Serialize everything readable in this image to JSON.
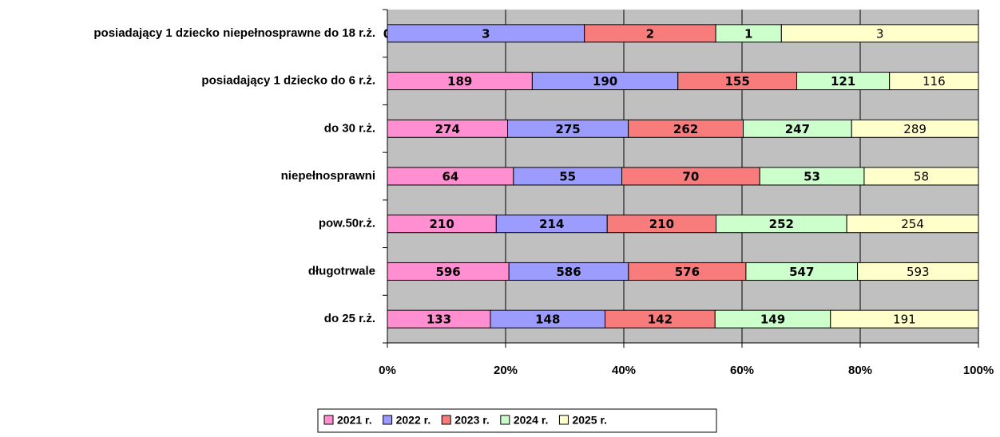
{
  "chart_data": {
    "type": "stacked100_hbar",
    "categories": [
      "posiadający 1 dziecko niepełnosprawne do 18 r.ż.",
      "posiadający 1 dziecko do 6 r.ż.",
      "do 30 r.ż.",
      "niepełnosprawni",
      "pow.50r.ż.",
      "długotrwale",
      "do 25 r.ż."
    ],
    "series": [
      {
        "name": "2021 r.",
        "color": "#ff8fd0",
        "values": [
          0,
          189,
          274,
          64,
          210,
          596,
          133
        ]
      },
      {
        "name": "2022 r.",
        "color": "#9c9cff",
        "values": [
          3,
          190,
          275,
          55,
          214,
          586,
          148
        ]
      },
      {
        "name": "2023 r.",
        "color": "#f87c7c",
        "values": [
          2,
          155,
          262,
          70,
          210,
          576,
          142
        ]
      },
      {
        "name": "2024 r.",
        "color": "#ccffcc",
        "values": [
          1,
          121,
          247,
          53,
          252,
          547,
          149
        ]
      },
      {
        "name": "2025 r.",
        "color": "#ffffcc",
        "values": [
          3,
          116,
          289,
          58,
          254,
          593,
          191
        ]
      }
    ],
    "xlim": [
      0,
      100
    ],
    "xticks": [
      {
        "value": 0,
        "label": "0%"
      },
      {
        "value": 20,
        "label": "20%"
      },
      {
        "value": 40,
        "label": "40%"
      },
      {
        "value": 60,
        "label": "60%"
      },
      {
        "value": 80,
        "label": "80%"
      },
      {
        "value": 100,
        "label": "100%"
      }
    ],
    "grid": true,
    "legend": "bottom"
  }
}
